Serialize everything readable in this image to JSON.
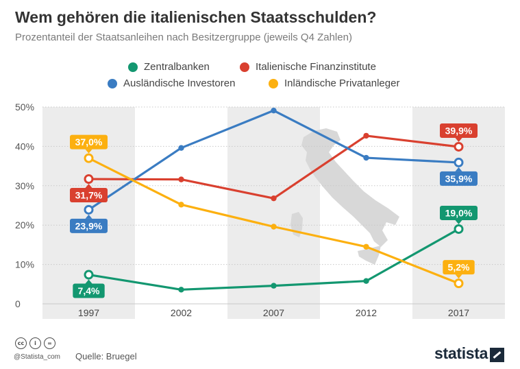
{
  "header": {
    "title": "Wem gehören die italienischen Staatsschulden?",
    "subtitle": "Prozentanteil der Staatsanleihen nach Besitzergruppe (jeweils Q4 Zahlen)"
  },
  "colors": {
    "Zentralbanken": "#139770",
    "Italienische Finanzinstitute": "#d9402f",
    "Ausländische Investoren": "#3a7cc2",
    "Inländische Privatanleger": "#fcb010",
    "band": "#ececec",
    "map": "#d8d8d8",
    "grid": "#c8c8c8",
    "text": "#333333"
  },
  "chart_data": {
    "type": "line",
    "categories": [
      "1997",
      "2002",
      "2007",
      "2012",
      "2017"
    ],
    "ylim": [
      0,
      50
    ],
    "yticks": [
      0,
      10,
      20,
      30,
      40,
      50
    ],
    "ytick_labels": [
      "0",
      "10%",
      "20%",
      "30%",
      "40%",
      "50%"
    ],
    "grid": true,
    "legend": "top",
    "series": [
      {
        "name": "Zentralbanken",
        "values": [
          7.4,
          3.6,
          4.6,
          5.8,
          19.0
        ],
        "labels": [
          {
            "index": 0,
            "text": "7,4%",
            "pos": "below"
          },
          {
            "index": 4,
            "text": "19,0%",
            "pos": "above"
          }
        ]
      },
      {
        "name": "Italienische Finanzinstitute",
        "values": [
          31.7,
          31.6,
          26.8,
          42.7,
          39.9
        ],
        "labels": [
          {
            "index": 0,
            "text": "31,7%",
            "pos": "below"
          },
          {
            "index": 4,
            "text": "39,9%",
            "pos": "above"
          }
        ]
      },
      {
        "name": "Ausländische Investoren",
        "values": [
          23.9,
          39.6,
          49.1,
          37.1,
          35.9
        ],
        "labels": [
          {
            "index": 0,
            "text": "23,9%",
            "pos": "below"
          },
          {
            "index": 4,
            "text": "35,9%",
            "pos": "below"
          }
        ]
      },
      {
        "name": "Inländische Privatanleger",
        "values": [
          37.0,
          25.2,
          19.6,
          14.5,
          5.2
        ],
        "labels": [
          {
            "index": 0,
            "text": "37,0%",
            "pos": "above"
          },
          {
            "index": 4,
            "text": "5,2%",
            "pos": "above"
          }
        ]
      }
    ]
  },
  "footer": {
    "license_icons": [
      "cc",
      "i",
      "="
    ],
    "handle": "@Statista_com",
    "source": "Quelle: Bruegel",
    "brand": "statista"
  }
}
